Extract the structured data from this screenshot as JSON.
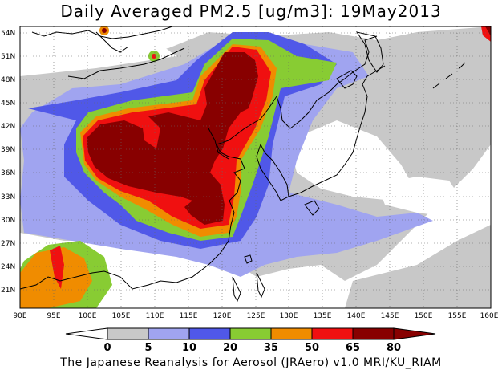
{
  "title": "Daily Averaged PM2.5 [ug/m3]: 19May2013",
  "footer": "The Japanese Reanalysis for Aerosol (JRAero) v1.0 MRI/KU_RIAM",
  "map": {
    "lon_range": [
      90,
      160
    ],
    "lat_range": [
      19.5,
      55.5
    ],
    "lon_labels": [
      "90E",
      "95E",
      "100E",
      "105E",
      "110E",
      "115E",
      "120E",
      "125E",
      "130E",
      "135E",
      "140E",
      "145E",
      "150E",
      "155E",
      "160E"
    ],
    "lat_labels": [
      "21N",
      "24N",
      "27N",
      "30N",
      "33N",
      "36N",
      "39N",
      "42N",
      "45N",
      "48N",
      "51N",
      "54N"
    ],
    "grid": "dotted"
  },
  "colorbar": {
    "levels": [
      "0",
      "5",
      "10",
      "20",
      "35",
      "50",
      "65",
      "80"
    ],
    "colors": [
      "#ffffff",
      "#c8c8c8",
      "#a0a4f0",
      "#5058e8",
      "#88cc33",
      "#f08c00",
      "#f01010",
      "#880000"
    ]
  }
}
